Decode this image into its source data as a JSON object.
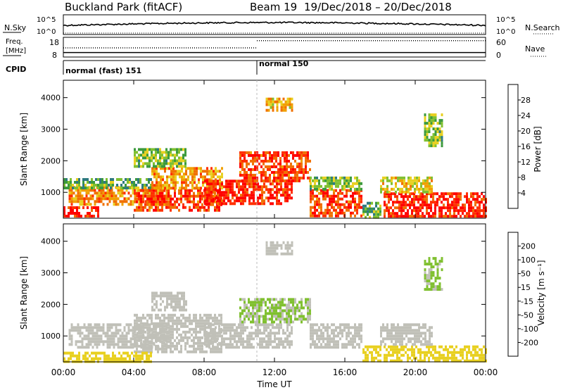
{
  "header": {
    "station": "Buckland Park (fitACF)",
    "beam": "Beam 19",
    "date_range": "19/Dec/2018 – 20/Dec/2018"
  },
  "top_panels": {
    "nsky_label": "N.Sky",
    "nsky_ticks": [
      "10^5",
      "10^0"
    ],
    "nsearch_label": "N.Search",
    "nsearch_ticks": [
      "10^5",
      "10^0"
    ],
    "freq_label_line1": "Freq.",
    "freq_label_line2": "[MHz]",
    "freq_ticks": [
      "18",
      "8"
    ],
    "nave_label": "Nave",
    "nave_ticks": [
      "60",
      "0"
    ],
    "cpid_label": "CPID",
    "cpid_segments": [
      {
        "label": "normal (fast) 151",
        "start_hour": 0,
        "end_hour": 11.0
      },
      {
        "label": "normal 150",
        "start_hour": 11.0,
        "end_hour": 24.0
      }
    ],
    "freq_mhz": [
      {
        "start_hour": 0,
        "end_hour": 11.0,
        "value": 10
      },
      {
        "start_hour": 11.0,
        "end_hour": 24.0,
        "value": 10
      }
    ],
    "nave": [
      {
        "start_hour": 0,
        "end_hour": 11.0,
        "value": 30
      },
      {
        "start_hour": 11.0,
        "end_hour": 24.0,
        "value": 58
      }
    ]
  },
  "chart_data": [
    {
      "type": "heatmap",
      "name": "power",
      "ylabel": "Slant Range [km]",
      "yticks": [
        1000,
        2000,
        3000,
        4000
      ],
      "ylim": [
        180,
        4550
      ],
      "xlim": [
        0,
        24
      ],
      "colorbar_label": "Power [dB]",
      "colorbar_ticks": [
        4,
        8,
        12,
        16,
        20,
        24,
        28
      ],
      "colorbar_range": [
        0,
        32
      ],
      "colors": [
        "#0000ff",
        "#1b4fbf",
        "#2e7a80",
        "#3c9a3c",
        "#80c030",
        "#e8d020",
        "#f0a000",
        "#f07000",
        "#ff3000",
        "#ff0000"
      ],
      "bands": [
        {
          "x0": 0.0,
          "x1": 2.0,
          "r0": 250,
          "r1": 560,
          "value": 30
        },
        {
          "x0": 0.3,
          "x1": 6.0,
          "r0": 600,
          "r1": 1200,
          "value": 22
        },
        {
          "x0": 0.0,
          "x1": 5.0,
          "r0": 1150,
          "r1": 1450,
          "value": 12
        },
        {
          "x0": 4.0,
          "x1": 9.0,
          "r0": 400,
          "r1": 1100,
          "value": 27
        },
        {
          "x0": 5.0,
          "x1": 9.0,
          "r0": 1100,
          "r1": 1800,
          "value": 22
        },
        {
          "x0": 4.0,
          "x1": 7.0,
          "r0": 1800,
          "r1": 2400,
          "value": 14
        },
        {
          "x0": 8.0,
          "x1": 13.0,
          "r0": 600,
          "r1": 1400,
          "value": 29
        },
        {
          "x0": 10.0,
          "x1": 14.0,
          "r0": 1400,
          "r1": 2300,
          "value": 27
        },
        {
          "x0": 11.5,
          "x1": 13.0,
          "r0": 3600,
          "r1": 4000,
          "value": 20
        },
        {
          "x0": 14.0,
          "x1": 17.0,
          "r0": 250,
          "r1": 1100,
          "value": 27
        },
        {
          "x0": 14.0,
          "x1": 17.0,
          "r0": 1100,
          "r1": 1500,
          "value": 14
        },
        {
          "x0": 17.0,
          "x1": 18.0,
          "r0": 250,
          "r1": 700,
          "value": 12
        },
        {
          "x0": 18.2,
          "x1": 24.0,
          "r0": 250,
          "r1": 1000,
          "value": 29
        },
        {
          "x0": 18.0,
          "x1": 21.0,
          "r0": 1000,
          "r1": 1500,
          "value": 18
        },
        {
          "x0": 20.5,
          "x1": 21.5,
          "r0": 2500,
          "r1": 3500,
          "value": 14
        }
      ]
    },
    {
      "type": "heatmap",
      "name": "velocity",
      "ylabel": "Slant Range [km]",
      "yticks": [
        1000,
        2000,
        3000,
        4000
      ],
      "ylim": [
        180,
        4550
      ],
      "xlim": [
        0,
        24
      ],
      "colorbar_label": "Velocity [m s⁻¹]",
      "colorbar_ticks": [
        200,
        100,
        50,
        15,
        -15,
        -50,
        -100,
        -200
      ],
      "colors": [
        "#ff0000",
        "#ff3000",
        "#f07000",
        "#f0a000",
        "#e8d020",
        "#c0c0b8",
        "#80c030",
        "#3c9a3c",
        "#2e7a80",
        "#1b4fbf",
        "#0000ff"
      ],
      "bands": [
        {
          "x0": 0.3,
          "x1": 6.0,
          "r0": 600,
          "r1": 1400,
          "value": 0
        },
        {
          "x0": 4.0,
          "x1": 9.0,
          "r0": 500,
          "r1": 1700,
          "value": 0
        },
        {
          "x0": 5.0,
          "x1": 7.0,
          "r0": 1800,
          "r1": 2400,
          "value": 0
        },
        {
          "x0": 8.0,
          "x1": 13.0,
          "r0": 600,
          "r1": 1400,
          "value": 0
        },
        {
          "x0": 10.0,
          "x1": 14.0,
          "r0": 1400,
          "r1": 2200,
          "value": 30
        },
        {
          "x0": 11.5,
          "x1": 13.0,
          "r0": 3600,
          "r1": 4000,
          "value": 0
        },
        {
          "x0": 14.0,
          "x1": 17.0,
          "r0": 600,
          "r1": 1400,
          "value": 0
        },
        {
          "x0": 0.0,
          "x1": 5.0,
          "r0": 200,
          "r1": 500,
          "value": -60
        },
        {
          "x0": 17.0,
          "x1": 18.0,
          "r0": 250,
          "r1": 700,
          "value": -60
        },
        {
          "x0": 18.2,
          "x1": 24.0,
          "r0": 250,
          "r1": 700,
          "value": -40
        },
        {
          "x0": 18.0,
          "x1": 21.0,
          "r0": 700,
          "r1": 1400,
          "value": 0
        },
        {
          "x0": 20.5,
          "x1": 21.5,
          "r0": 2500,
          "r1": 3500,
          "value": 30
        }
      ]
    }
  ],
  "x_axis": {
    "label": "Time UT",
    "ticks": [
      "00:00",
      "04:00",
      "08:00",
      "12:00",
      "16:00",
      "20:00",
      "00:00"
    ],
    "tick_hours": [
      0,
      4,
      8,
      12,
      16,
      20,
      24
    ]
  },
  "vertical_marker_hour": 11.0
}
